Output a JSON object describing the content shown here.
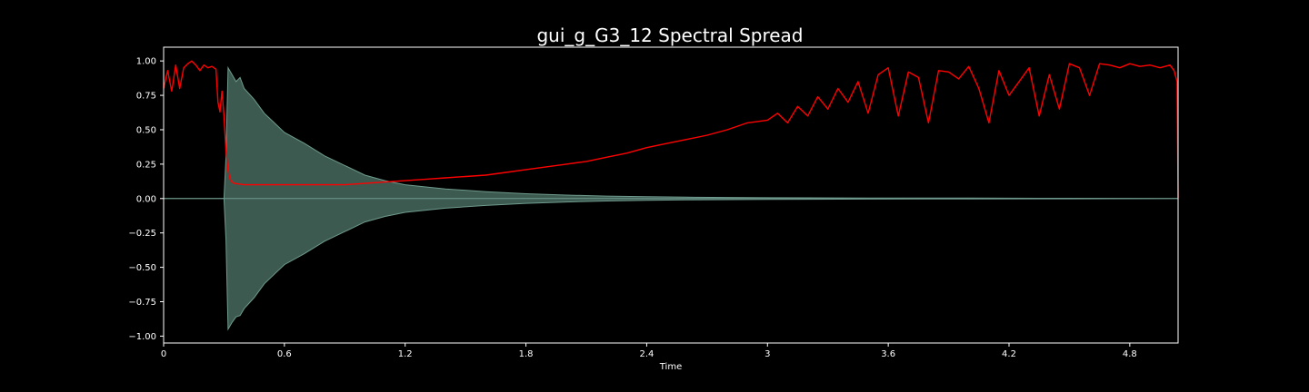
{
  "chart_data": {
    "type": "line",
    "title": "gui_g_G3_12 Spectral Spread",
    "xlabel": "Time",
    "ylabel": "",
    "xlim": [
      0,
      5.04
    ],
    "ylim": [
      -1.05,
      1.1
    ],
    "x_ticks": [
      {
        "value": 0,
        "label": "0"
      },
      {
        "value": 0.6,
        "label": "0.6"
      },
      {
        "value": 1.2,
        "label": "1.2"
      },
      {
        "value": 1.8,
        "label": "1.8"
      },
      {
        "value": 2.4,
        "label": "2.4"
      },
      {
        "value": 3.0,
        "label": "3"
      },
      {
        "value": 3.6,
        "label": "3.6"
      },
      {
        "value": 4.2,
        "label": "4.2"
      },
      {
        "value": 4.8,
        "label": "4.8"
      }
    ],
    "y_ticks": [
      {
        "value": 1.0,
        "label": "1.00"
      },
      {
        "value": 0.75,
        "label": "0.75"
      },
      {
        "value": 0.5,
        "label": "0.50"
      },
      {
        "value": 0.25,
        "label": "0.25"
      },
      {
        "value": 0.0,
        "label": "0.00"
      },
      {
        "value": -0.25,
        "label": "−0.25"
      },
      {
        "value": -0.5,
        "label": "−0.50"
      },
      {
        "value": -0.75,
        "label": "−0.75"
      },
      {
        "value": -1.0,
        "label": "−1.00"
      }
    ],
    "grid": false,
    "colors": {
      "background": "#000000",
      "axes": "#ffffff",
      "waveform_fill": "#3d5a50",
      "waveform_edge": "#6f9a8d",
      "spread_line": "#ff0000"
    },
    "waveform_envelope": {
      "x": [
        0.0,
        0.3,
        0.31,
        0.32,
        0.34,
        0.36,
        0.38,
        0.4,
        0.45,
        0.5,
        0.55,
        0.6,
        0.7,
        0.8,
        0.9,
        1.0,
        1.1,
        1.2,
        1.4,
        1.6,
        1.8,
        2.0,
        2.2,
        2.4,
        2.6,
        3.0,
        3.5,
        4.0,
        4.5,
        5.04
      ],
      "upper": [
        0.0,
        0.0,
        0.3,
        0.95,
        0.9,
        0.85,
        0.88,
        0.8,
        0.72,
        0.62,
        0.55,
        0.48,
        0.4,
        0.31,
        0.24,
        0.17,
        0.13,
        0.1,
        0.07,
        0.05,
        0.035,
        0.025,
        0.018,
        0.013,
        0.01,
        0.006,
        0.004,
        0.003,
        0.002,
        0.0
      ],
      "lower": [
        0.0,
        0.0,
        -0.3,
        -0.95,
        -0.9,
        -0.86,
        -0.85,
        -0.8,
        -0.72,
        -0.62,
        -0.55,
        -0.48,
        -0.4,
        -0.31,
        -0.24,
        -0.17,
        -0.13,
        -0.1,
        -0.07,
        -0.05,
        -0.035,
        -0.025,
        -0.018,
        -0.013,
        -0.01,
        -0.006,
        -0.004,
        -0.003,
        -0.002,
        0.0
      ]
    },
    "series": [
      {
        "x": [
          0.0,
          0.02,
          0.04,
          0.06,
          0.08,
          0.1,
          0.12,
          0.14,
          0.16,
          0.18,
          0.2,
          0.22,
          0.24,
          0.26,
          0.27,
          0.28,
          0.29,
          0.3,
          0.31,
          0.32,
          0.33,
          0.34,
          0.35,
          0.4,
          0.5,
          0.6,
          0.7,
          0.8,
          0.9,
          1.0,
          1.1,
          1.2,
          1.3,
          1.4,
          1.5,
          1.6,
          1.7,
          1.8,
          1.9,
          2.0,
          2.1,
          2.2,
          2.3,
          2.4,
          2.5,
          2.6,
          2.7,
          2.8,
          2.9,
          3.0,
          3.05,
          3.1,
          3.15,
          3.2,
          3.25,
          3.3,
          3.35,
          3.4,
          3.45,
          3.5,
          3.55,
          3.6,
          3.65,
          3.7,
          3.75,
          3.8,
          3.85,
          3.9,
          3.95,
          4.0,
          4.05,
          4.1,
          4.15,
          4.2,
          4.25,
          4.3,
          4.35,
          4.4,
          4.45,
          4.5,
          4.55,
          4.6,
          4.65,
          4.7,
          4.75,
          4.8,
          4.85,
          4.9,
          4.95,
          5.0,
          5.02,
          5.035,
          5.04
        ],
        "y": [
          0.8,
          0.93,
          0.78,
          0.97,
          0.8,
          0.95,
          0.98,
          1.0,
          0.97,
          0.93,
          0.97,
          0.95,
          0.96,
          0.94,
          0.7,
          0.63,
          0.78,
          0.6,
          0.35,
          0.2,
          0.14,
          0.12,
          0.11,
          0.1,
          0.1,
          0.1,
          0.1,
          0.1,
          0.1,
          0.11,
          0.12,
          0.13,
          0.14,
          0.15,
          0.16,
          0.17,
          0.19,
          0.21,
          0.23,
          0.25,
          0.27,
          0.3,
          0.33,
          0.37,
          0.4,
          0.43,
          0.46,
          0.5,
          0.55,
          0.57,
          0.62,
          0.55,
          0.67,
          0.6,
          0.74,
          0.65,
          0.8,
          0.7,
          0.85,
          0.62,
          0.9,
          0.95,
          0.6,
          0.92,
          0.88,
          0.55,
          0.93,
          0.92,
          0.87,
          0.96,
          0.8,
          0.55,
          0.93,
          0.75,
          0.85,
          0.95,
          0.6,
          0.9,
          0.65,
          0.98,
          0.95,
          0.75,
          0.98,
          0.97,
          0.95,
          0.98,
          0.96,
          0.97,
          0.95,
          0.97,
          0.93,
          0.85,
          0.0
        ]
      }
    ]
  }
}
